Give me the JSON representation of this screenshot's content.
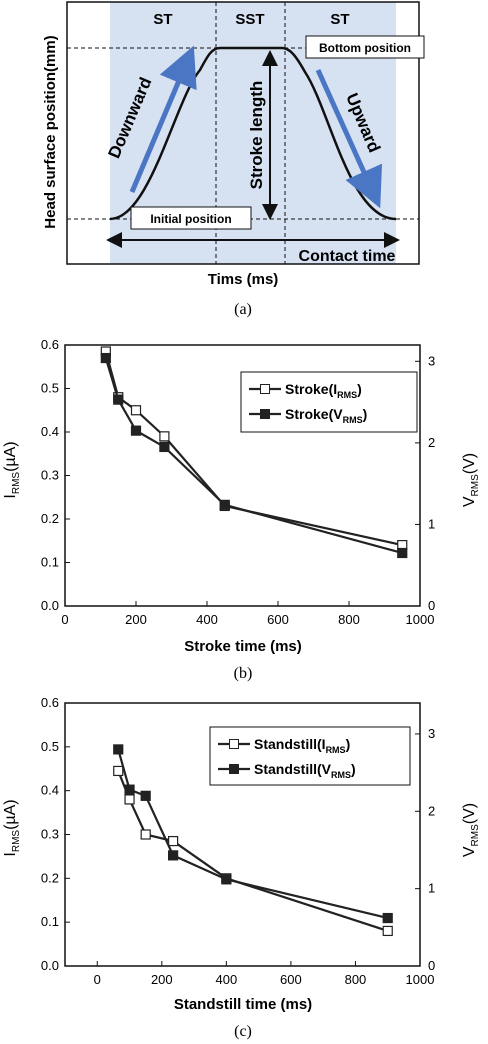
{
  "colors": {
    "shade": "#d6e1f1",
    "arrow": "#4a76c4",
    "ink": "#111111"
  },
  "chart_data": [
    {
      "type": "diagram",
      "panel_label": "(a)",
      "xlabel": "Tims (ms)",
      "ylabel": "Head surface position(mm)",
      "regions": [
        "ST",
        "SST",
        "ST"
      ],
      "labels": {
        "bottom": "Bottom position",
        "initial": "Initial position",
        "contact": "Contact time",
        "downward": "Downward",
        "upward": "Upward",
        "stroke": "Stroke length"
      }
    },
    {
      "type": "line",
      "panel_label": "(b)",
      "xlabel": "Stroke time (ms)",
      "ylabel_left": {
        "base": "I",
        "sub": "RMS",
        "unit": "(µA)"
      },
      "ylabel_right": {
        "base": "V",
        "sub": "RMS",
        "unit": "(V)"
      },
      "xlim": [
        0,
        1000
      ],
      "ylim_left": [
        0,
        0.6
      ],
      "ylim_right": [
        0,
        3.2
      ],
      "xticks": [
        "0",
        "200",
        "400",
        "600",
        "800",
        "1000"
      ],
      "yticks_left": [
        "0.0",
        "0.1",
        "0.2",
        "0.3",
        "0.4",
        "0.5",
        "0.6"
      ],
      "yticks_right": [
        "0",
        "1",
        "2",
        "3"
      ],
      "legend_position": "top-right",
      "series": [
        {
          "name": {
            "base": "Stroke(I",
            "sub": "RMS",
            "tail": ")"
          },
          "marker": "open-square",
          "axis": "left",
          "x": [
            115,
            150,
            200,
            280,
            450,
            950
          ],
          "y": [
            0.585,
            0.48,
            0.45,
            0.39,
            0.23,
            0.14
          ]
        },
        {
          "name": {
            "base": "Stroke(V",
            "sub": "RMS",
            "tail": ")"
          },
          "marker": "filled-square",
          "axis": "right",
          "x": [
            115,
            150,
            200,
            280,
            450,
            950
          ],
          "y": [
            3.04,
            2.53,
            2.15,
            1.95,
            1.24,
            0.65
          ]
        }
      ]
    },
    {
      "type": "line",
      "panel_label": "(c)",
      "xlabel": "Standstill time (ms)",
      "ylabel_left": {
        "base": "I",
        "sub": "RMS",
        "unit": "(µA)"
      },
      "ylabel_right": {
        "base": "V",
        "sub": "RMS",
        "unit": "(V)"
      },
      "xlim": [
        -100,
        1000
      ],
      "ylim_left": [
        0,
        0.6
      ],
      "ylim_right": [
        0,
        3.4
      ],
      "xticks": [
        "0",
        "200",
        "400",
        "600",
        "800",
        "1000"
      ],
      "yticks_left": [
        "0.0",
        "0.1",
        "0.2",
        "0.3",
        "0.4",
        "0.5",
        "0.6"
      ],
      "yticks_right": [
        "0",
        "1",
        "2",
        "3"
      ],
      "legend_position": "top-right",
      "series": [
        {
          "name": {
            "base": "Standstill(I",
            "sub": "RMS",
            "tail": ")"
          },
          "marker": "open-square",
          "axis": "left",
          "x": [
            65,
            100,
            150,
            235,
            400,
            900
          ],
          "y": [
            0.445,
            0.38,
            0.3,
            0.285,
            0.2,
            0.08
          ]
        },
        {
          "name": {
            "base": "Standstill(V",
            "sub": "RMS",
            "tail": ")"
          },
          "marker": "filled-square",
          "axis": "right",
          "x": [
            65,
            100,
            150,
            235,
            400,
            900
          ],
          "y": [
            2.8,
            2.28,
            2.2,
            1.43,
            1.12,
            0.62
          ]
        }
      ]
    }
  ]
}
